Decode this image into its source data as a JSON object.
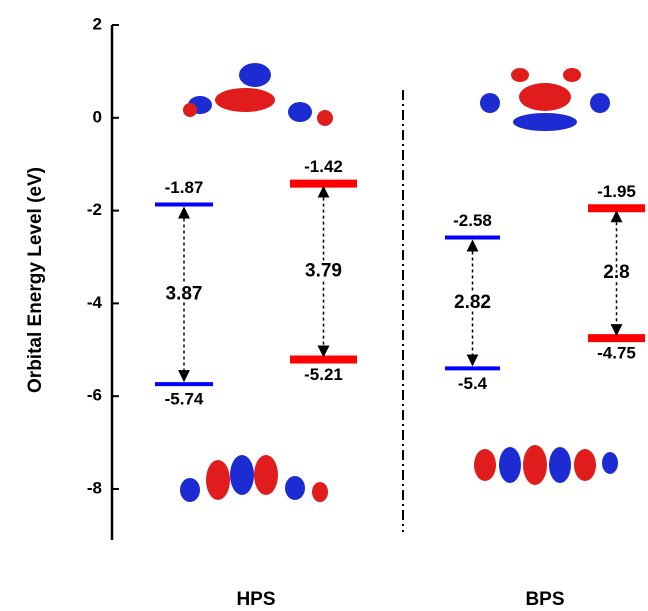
{
  "chart_data": {
    "type": "energy-level",
    "y_label": "Orbital Energy Level (eV)",
    "ylim": [
      -9.1,
      2
    ],
    "yticks": [
      2,
      0,
      -2,
      -4,
      -6,
      -8
    ],
    "groups": [
      {
        "name": "HPS",
        "pairs": [
          {
            "color": "#0000ff",
            "lumo": -1.87,
            "homo": -5.74,
            "gap": 3.87
          },
          {
            "color": "#ff0000",
            "lumo": -1.42,
            "homo": -5.21,
            "gap": 3.79
          }
        ]
      },
      {
        "name": "BPS",
        "pairs": [
          {
            "color": "#0000ff",
            "lumo": -2.58,
            "homo": -5.4,
            "gap": 2.82
          },
          {
            "color": "#ff0000",
            "lumo": -1.95,
            "homo": -4.75,
            "gap": 2.8
          }
        ]
      }
    ]
  }
}
